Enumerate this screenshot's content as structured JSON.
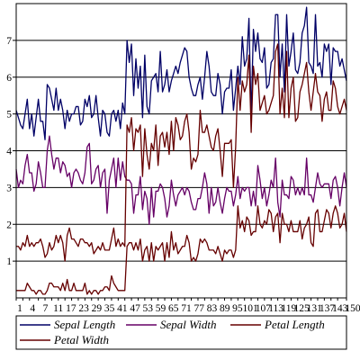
{
  "chart_data": {
    "type": "line",
    "x": [
      1,
      2,
      3,
      4,
      5,
      6,
      7,
      8,
      9,
      10,
      11,
      12,
      13,
      14,
      15,
      16,
      17,
      18,
      19,
      20,
      21,
      22,
      23,
      24,
      25,
      26,
      27,
      28,
      29,
      30,
      31,
      32,
      33,
      34,
      35,
      36,
      37,
      38,
      39,
      40,
      41,
      42,
      43,
      44,
      45,
      46,
      47,
      48,
      49,
      50,
      51,
      52,
      53,
      54,
      55,
      56,
      57,
      58,
      59,
      60,
      61,
      62,
      63,
      64,
      65,
      66,
      67,
      68,
      69,
      70,
      71,
      72,
      73,
      74,
      75,
      76,
      77,
      78,
      79,
      80,
      81,
      82,
      83,
      84,
      85,
      86,
      87,
      88,
      89,
      90,
      91,
      92,
      93,
      94,
      95,
      96,
      97,
      98,
      99,
      100,
      101,
      102,
      103,
      104,
      105,
      106,
      107,
      108,
      109,
      110,
      111,
      112,
      113,
      114,
      115,
      116,
      117,
      118,
      119,
      120,
      121,
      122,
      123,
      124,
      125,
      126,
      127,
      128,
      129,
      130,
      131,
      132,
      133,
      134,
      135,
      136,
      137,
      138,
      139,
      140,
      141,
      142,
      143,
      144,
      145,
      146,
      147,
      148,
      149,
      150
    ],
    "x_tick_labels": [
      "1",
      "4",
      "7",
      "11",
      "17",
      "23",
      "29",
      "35",
      "41",
      "47",
      "53",
      "59",
      "65",
      "71",
      "77",
      "83",
      "89",
      "95",
      "101",
      "107",
      "113",
      "119",
      "125",
      "131",
      "137",
      "143",
      "150"
    ],
    "x_tick_positions": [
      1,
      4,
      7,
      11,
      14,
      17,
      20,
      23,
      26,
      29,
      32,
      35,
      38,
      41,
      44,
      47,
      50,
      53,
      56,
      59,
      62,
      65,
      68,
      71,
      74,
      77,
      80,
      83,
      86,
      89,
      92,
      95,
      98,
      101,
      104,
      107,
      110,
      113,
      116,
      119,
      122,
      125,
      128,
      131,
      134,
      137,
      140,
      143,
      146,
      150
    ],
    "y_ticks": [
      1,
      2,
      3,
      4,
      5,
      6,
      7
    ],
    "ylim": [
      0,
      8
    ],
    "grid": "horizontal",
    "legend_position": "bottom",
    "series": [
      {
        "name": "Sepal Length",
        "color": "#000066",
        "values": [
          5.1,
          4.9,
          4.7,
          4.6,
          5.0,
          5.4,
          4.6,
          5.0,
          4.4,
          4.9,
          5.4,
          4.8,
          4.8,
          4.3,
          5.8,
          5.7,
          5.4,
          5.1,
          5.7,
          5.1,
          5.4,
          5.1,
          4.6,
          5.1,
          4.8,
          5.0,
          5.0,
          5.2,
          5.2,
          4.7,
          4.8,
          5.4,
          5.2,
          5.5,
          4.9,
          5.0,
          5.5,
          4.9,
          4.4,
          5.1,
          5.0,
          4.5,
          4.4,
          5.0,
          5.1,
          4.8,
          5.1,
          4.6,
          5.3,
          5.0,
          7.0,
          6.4,
          6.9,
          5.5,
          6.5,
          5.7,
          6.3,
          4.9,
          6.6,
          5.2,
          5.0,
          5.9,
          6.0,
          6.1,
          5.6,
          6.7,
          5.6,
          5.8,
          6.2,
          5.6,
          5.9,
          6.1,
          6.3,
          6.1,
          6.4,
          6.6,
          6.8,
          6.7,
          6.0,
          5.7,
          5.5,
          5.5,
          5.8,
          6.0,
          5.4,
          6.0,
          6.7,
          6.3,
          5.6,
          5.5,
          5.5,
          6.1,
          5.8,
          5.0,
          5.6,
          5.7,
          5.7,
          6.2,
          5.1,
          5.7,
          6.3,
          5.8,
          7.1,
          6.3,
          6.5,
          7.6,
          4.9,
          7.3,
          6.7,
          7.2,
          6.5,
          6.4,
          6.8,
          5.7,
          5.8,
          6.4,
          6.5,
          7.7,
          7.7,
          6.0,
          6.9,
          5.6,
          7.7,
          6.3,
          6.7,
          7.2,
          6.2,
          6.1,
          6.4,
          7.2,
          7.4,
          7.9,
          6.4,
          6.3,
          6.1,
          7.7,
          6.3,
          6.4,
          6.0,
          6.9,
          6.7,
          6.9,
          5.8,
          6.8,
          6.7,
          6.7,
          6.3,
          6.5,
          6.2,
          5.9
        ]
      },
      {
        "name": "Sepal Width",
        "color": "#660066",
        "values": [
          3.5,
          3.0,
          3.2,
          3.1,
          3.6,
          3.9,
          3.4,
          3.4,
          2.9,
          3.1,
          3.7,
          3.4,
          3.0,
          3.0,
          4.0,
          4.4,
          3.9,
          3.5,
          3.8,
          3.8,
          3.4,
          3.7,
          3.6,
          3.3,
          3.4,
          3.0,
          3.4,
          3.5,
          3.4,
          3.2,
          3.1,
          3.4,
          4.1,
          4.2,
          3.1,
          3.2,
          3.5,
          3.6,
          3.0,
          3.4,
          3.5,
          2.3,
          3.2,
          3.5,
          3.8,
          3.0,
          3.8,
          3.2,
          3.7,
          3.3,
          3.2,
          3.2,
          3.1,
          2.3,
          2.8,
          2.8,
          3.3,
          2.4,
          2.9,
          2.7,
          2.0,
          3.0,
          2.2,
          2.9,
          2.9,
          3.1,
          3.0,
          2.7,
          2.2,
          2.5,
          3.2,
          2.8,
          2.5,
          2.8,
          2.9,
          3.0,
          2.8,
          3.0,
          2.9,
          2.6,
          2.4,
          2.4,
          2.7,
          2.7,
          3.0,
          3.4,
          3.1,
          2.3,
          3.0,
          2.5,
          2.6,
          3.0,
          2.6,
          2.3,
          2.7,
          3.0,
          2.9,
          2.9,
          2.5,
          2.8,
          3.3,
          2.7,
          3.0,
          2.9,
          3.0,
          3.0,
          2.5,
          2.9,
          2.5,
          3.6,
          3.2,
          2.7,
          3.0,
          2.5,
          2.8,
          3.2,
          3.0,
          3.8,
          2.6,
          2.2,
          3.2,
          2.8,
          2.8,
          2.7,
          3.3,
          3.2,
          2.8,
          3.0,
          2.8,
          3.0,
          2.8,
          3.8,
          2.8,
          2.8,
          2.6,
          3.0,
          3.4,
          3.1,
          3.0,
          3.1,
          3.1,
          3.1,
          2.7,
          3.2,
          3.3,
          3.0,
          2.5,
          3.0,
          3.4,
          3.0
        ]
      },
      {
        "name": "Petal Length",
        "color": "#660000",
        "values": [
          1.4,
          1.4,
          1.3,
          1.5,
          1.4,
          1.7,
          1.4,
          1.5,
          1.4,
          1.5,
          1.5,
          1.6,
          1.4,
          1.1,
          1.2,
          1.5,
          1.3,
          1.4,
          1.7,
          1.5,
          1.7,
          1.5,
          1.0,
          1.7,
          1.9,
          1.6,
          1.6,
          1.5,
          1.4,
          1.6,
          1.6,
          1.5,
          1.5,
          1.4,
          1.5,
          1.2,
          1.3,
          1.4,
          1.3,
          1.5,
          1.3,
          1.3,
          1.3,
          1.6,
          1.9,
          1.4,
          1.6,
          1.4,
          1.5,
          1.4,
          4.7,
          4.5,
          4.9,
          4.0,
          4.6,
          4.5,
          4.7,
          3.3,
          4.6,
          3.9,
          3.5,
          4.2,
          4.0,
          4.7,
          3.6,
          4.4,
          4.5,
          4.1,
          4.5,
          3.9,
          4.8,
          4.0,
          4.9,
          4.7,
          4.3,
          4.4,
          4.8,
          5.0,
          4.5,
          3.5,
          3.8,
          3.7,
          3.9,
          5.1,
          4.5,
          4.5,
          4.7,
          4.4,
          4.1,
          4.0,
          4.4,
          4.6,
          4.0,
          3.3,
          4.2,
          4.2,
          4.2,
          4.3,
          3.0,
          4.1,
          6.0,
          5.1,
          5.9,
          5.6,
          5.8,
          6.6,
          4.5,
          6.3,
          5.8,
          6.1,
          5.1,
          5.3,
          5.5,
          5.0,
          5.1,
          5.3,
          5.5,
          6.7,
          6.9,
          5.0,
          5.7,
          4.9,
          6.7,
          4.9,
          5.7,
          6.0,
          4.8,
          4.9,
          5.6,
          5.8,
          6.1,
          6.4,
          5.6,
          5.1,
          5.6,
          6.1,
          5.6,
          5.5,
          4.8,
          5.4,
          5.6,
          5.1,
          5.1,
          5.9,
          5.7,
          5.2,
          5.0,
          5.2,
          5.4,
          5.1
        ]
      },
      {
        "name": "Petal Width",
        "color": "#660000",
        "values": [
          0.2,
          0.2,
          0.2,
          0.2,
          0.2,
          0.4,
          0.3,
          0.2,
          0.2,
          0.1,
          0.2,
          0.2,
          0.1,
          0.1,
          0.2,
          0.4,
          0.4,
          0.3,
          0.3,
          0.3,
          0.2,
          0.4,
          0.2,
          0.5,
          0.2,
          0.2,
          0.4,
          0.2,
          0.2,
          0.2,
          0.2,
          0.4,
          0.1,
          0.2,
          0.1,
          0.2,
          0.2,
          0.1,
          0.2,
          0.2,
          0.3,
          0.3,
          0.2,
          0.6,
          0.4,
          0.3,
          0.2,
          0.2,
          0.2,
          0.2,
          1.4,
          1.5,
          1.5,
          1.3,
          1.5,
          1.3,
          1.6,
          1.0,
          1.3,
          1.4,
          1.0,
          1.5,
          1.0,
          1.4,
          1.3,
          1.4,
          1.5,
          1.0,
          1.5,
          1.1,
          1.8,
          1.3,
          1.5,
          1.2,
          1.3,
          1.4,
          1.4,
          1.7,
          1.5,
          1.0,
          1.1,
          1.0,
          1.2,
          1.6,
          1.5,
          1.6,
          1.5,
          1.3,
          1.3,
          1.3,
          1.2,
          1.4,
          1.2,
          1.0,
          1.3,
          1.2,
          1.3,
          1.3,
          1.1,
          1.3,
          2.5,
          1.9,
          2.1,
          1.8,
          2.2,
          2.1,
          1.7,
          1.8,
          1.8,
          2.5,
          2.0,
          1.9,
          2.1,
          2.0,
          2.4,
          2.3,
          1.8,
          2.2,
          2.3,
          1.5,
          2.3,
          2.0,
          2.0,
          1.8,
          2.1,
          1.8,
          1.8,
          1.8,
          2.1,
          1.6,
          1.9,
          2.0,
          2.2,
          1.5,
          1.4,
          2.3,
          2.4,
          1.8,
          1.8,
          2.1,
          2.4,
          2.3,
          1.9,
          2.3,
          2.5,
          2.3,
          1.9,
          2.0,
          2.3,
          1.8
        ]
      }
    ]
  }
}
